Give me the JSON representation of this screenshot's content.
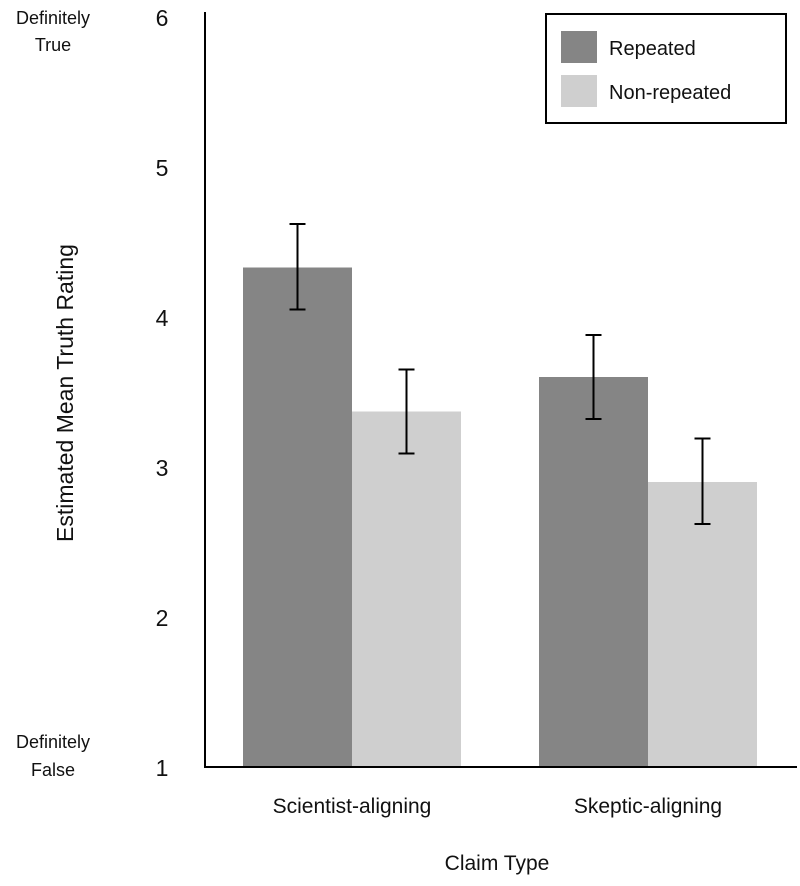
{
  "chart_data": {
    "type": "bar",
    "title": "",
    "xlabel": "Claim Type",
    "ylabel": "Estimated Mean Truth Rating",
    "ylim": [
      1,
      6
    ],
    "yticks": [
      1,
      2,
      3,
      4,
      5,
      6
    ],
    "ytick_labels": [
      "1",
      "2",
      "3",
      "4",
      "5",
      "6"
    ],
    "y_anchor_labels": {
      "top": [
        "Definitely",
        "True"
      ],
      "bottom": [
        "Definitely",
        "False"
      ]
    },
    "categories": [
      "Scientist-aligning",
      "Skeptic-aligning"
    ],
    "series": [
      {
        "name": "Repeated",
        "color": "#858585",
        "values": [
          4.33,
          3.6
        ],
        "error_low": [
          4.05,
          3.32
        ],
        "error_high": [
          4.62,
          3.88
        ]
      },
      {
        "name": "Non-repeated",
        "color": "#cfcfcf",
        "values": [
          3.37,
          2.9
        ],
        "error_low": [
          3.09,
          2.62
        ],
        "error_high": [
          3.65,
          3.19
        ]
      }
    ],
    "grid": false,
    "legend": "top-right"
  }
}
